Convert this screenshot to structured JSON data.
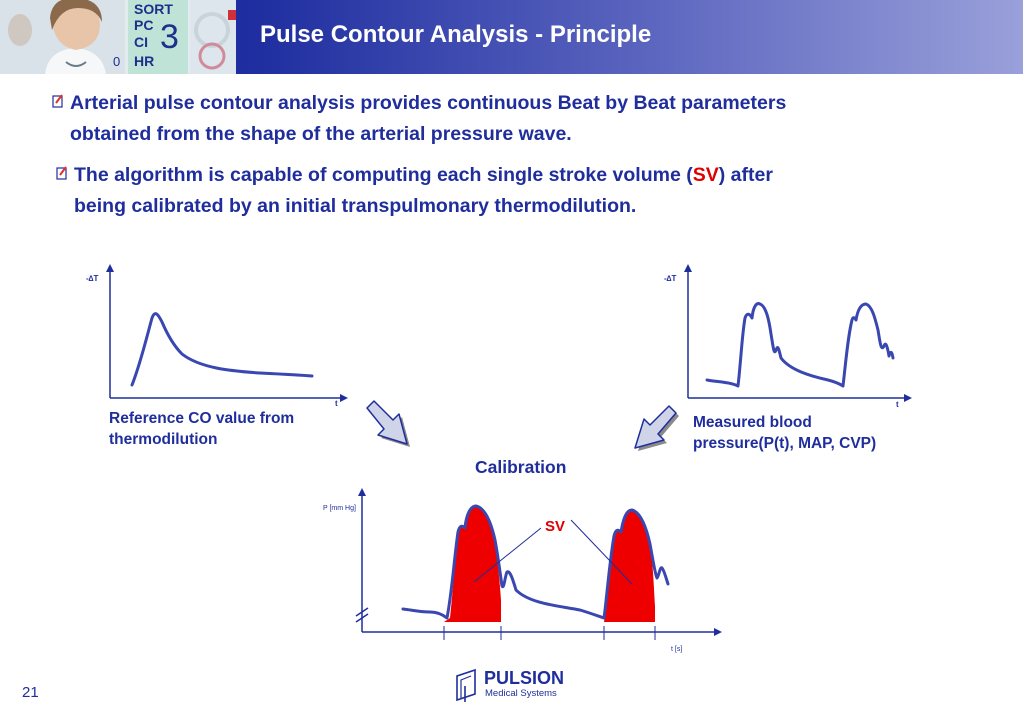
{
  "slide": {
    "title": "Pulse Contour Analysis - Principle",
    "page_number": "21"
  },
  "monitor": {
    "lines": [
      "SORT",
      "PC",
      "CI",
      "HR"
    ],
    "big_digit": "3",
    "small_digit": "0"
  },
  "bullets": [
    {
      "line1": "Arterial pulse contour analysis provides continuous Beat by Beat parameters",
      "line2": "obtained from the shape of the arterial pressure wave."
    },
    {
      "line1_pre": "The algorithm is capable of computing each single stroke volume (",
      "line1_sv": "SV",
      "line1_post": ") after",
      "line2": "being calibrated by an initial transpulmonary thermodilution."
    }
  ],
  "diagram": {
    "thermo_ylabel": "-∆T",
    "thermo_xlabel": "t",
    "thermo_caption": [
      "Reference CO value from",
      "thermodilution"
    ],
    "bp_ylabel": "-∆T",
    "bp_xlabel": "t",
    "bp_caption": [
      "Measured blood",
      "pressure(P(t), MAP, CVP)"
    ],
    "calibration_label": "Calibration",
    "pressure_ylabel": "P [mm Hg]",
    "pressure_xlabel": "t [s]",
    "sv_label": "SV"
  },
  "logo": {
    "name": "PULSION",
    "subtitle": "Medical Systems"
  },
  "colors": {
    "header_dark": "#0f1c8f",
    "text_blue": "#1f2e9c",
    "curve_blue": "#3a47b0",
    "sv_red": "#e00000"
  }
}
